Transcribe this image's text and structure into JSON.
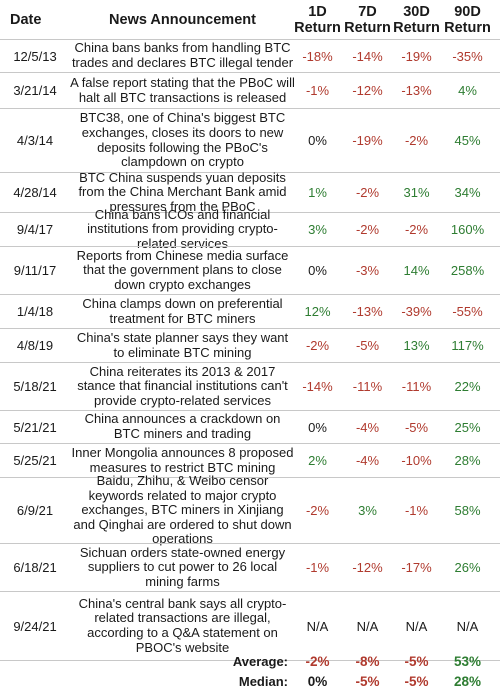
{
  "header": {
    "date": "Date",
    "news": "News Announcement",
    "r1_line1": "1D",
    "r1_line2": "Return",
    "r7_line1": "7D",
    "r7_line2": "Return",
    "r30_line1": "30D",
    "r30_line2": "Return",
    "r90_line1": "90D",
    "r90_line2": "Return"
  },
  "rows": [
    {
      "date": "12/5/13",
      "news": "China bans banks from handling BTC trades and declares BTC illegal tender",
      "d1": "-18%",
      "d7": "-14%",
      "d30": "-19%",
      "d90": "-35%"
    },
    {
      "date": "3/21/14",
      "news": "A false report stating that the PBoC will halt all BTC transactions is released",
      "d1": "-1%",
      "d7": "-12%",
      "d30": "-13%",
      "d90": "4%"
    },
    {
      "date": "4/3/14",
      "news": "BTC38, one of China's biggest BTC exchanges, closes its doors to new deposits following the PBoC's clampdown on crypto",
      "d1": "0%",
      "d7": "-19%",
      "d30": "-2%",
      "d90": "45%"
    },
    {
      "date": "4/28/14",
      "news": "BTC China suspends yuan deposits from the China Merchant Bank amid pressures from the PBoC",
      "d1": "1%",
      "d7": "-2%",
      "d30": "31%",
      "d90": "34%"
    },
    {
      "date": "9/4/17",
      "news": "China bans ICOs and financial institutions from providing crypto-related services",
      "d1": "3%",
      "d7": "-2%",
      "d30": "-2%",
      "d90": "160%"
    },
    {
      "date": "9/11/17",
      "news": "Reports from Chinese media surface that the government plans to close down crypto exchanges",
      "d1": "0%",
      "d7": "-3%",
      "d30": "14%",
      "d90": "258%"
    },
    {
      "date": "1/4/18",
      "news": "China clamps down on preferential treatment for BTC miners",
      "d1": "12%",
      "d7": "-13%",
      "d30": "-39%",
      "d90": "-55%"
    },
    {
      "date": "4/8/19",
      "news": "China's state planner says they want to eliminate BTC mining",
      "d1": "-2%",
      "d7": "-5%",
      "d30": "13%",
      "d90": "117%"
    },
    {
      "date": "5/18/21",
      "news": "China reiterates its 2013 & 2017 stance that financial institutions can't provide crypto-related services",
      "d1": "-14%",
      "d7": "-11%",
      "d30": "-11%",
      "d90": "22%"
    },
    {
      "date": "5/21/21",
      "news": "China announces a crackdown on BTC miners and trading",
      "d1": "0%",
      "d7": "-4%",
      "d30": "-5%",
      "d90": "25%"
    },
    {
      "date": "5/25/21",
      "news": "Inner Mongolia announces 8 proposed measures to restrict BTC mining",
      "d1": "2%",
      "d7": "-4%",
      "d30": "-10%",
      "d90": "28%"
    },
    {
      "date": "6/9/21",
      "news": "Baidu, Zhihu, & Weibo censor keywords related to major crypto exchanges, BTC miners in Xinjiang and Qinghai are ordered to shut down operations",
      "d1": "-2%",
      "d7": "3%",
      "d30": "-1%",
      "d90": "58%"
    },
    {
      "date": "6/18/21",
      "news": "Sichuan orders state-owned energy suppliers to cut power to 26 local mining farms",
      "d1": "-1%",
      "d7": "-12%",
      "d30": "-17%",
      "d90": "26%"
    },
    {
      "date": "9/24/21",
      "news": "China's central bank says all crypto-related transactions are illegal, according to a Q&A statement on PBOC's website",
      "d1": "N/A",
      "d7": "N/A",
      "d30": "N/A",
      "d90": "N/A"
    }
  ],
  "summary": [
    {
      "label": "Average:",
      "d1": "-2%",
      "d7": "-8%",
      "d30": "-5%",
      "d90": "53%"
    },
    {
      "label": "Median:",
      "d1": "0%",
      "d7": "-5%",
      "d30": "-5%",
      "d90": "28%"
    }
  ],
  "colors": {
    "negative": "#b03a2e",
    "positive": "#2e7d32",
    "neutral": "#1a1a1a"
  }
}
